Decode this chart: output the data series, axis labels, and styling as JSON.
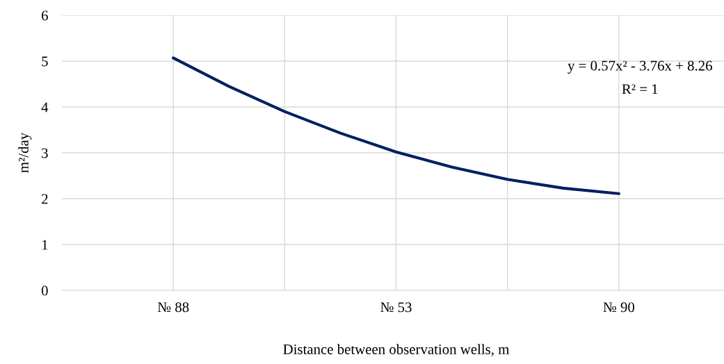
{
  "chart_data": {
    "type": "line",
    "xlabel": "Distance between observation wells, m",
    "ylabel": "m²/day",
    "categories": [
      "№ 88",
      null,
      null,
      null,
      "№ 53",
      null,
      null,
      null,
      "№ 90"
    ],
    "series": [
      {
        "color": "#002060",
        "values": [
          5.07,
          4.45,
          3.9,
          3.43,
          3.02,
          2.69,
          2.42,
          2.23,
          2.11
        ]
      }
    ],
    "ylim": [
      0,
      6
    ],
    "yticks": [
      0,
      1,
      2,
      3,
      4,
      5,
      6
    ],
    "grid": true,
    "marker": "none",
    "line_style": "solid",
    "annotations": [
      "y = 0.57x² - 3.76x + 8.26",
      "R² = 1"
    ]
  }
}
